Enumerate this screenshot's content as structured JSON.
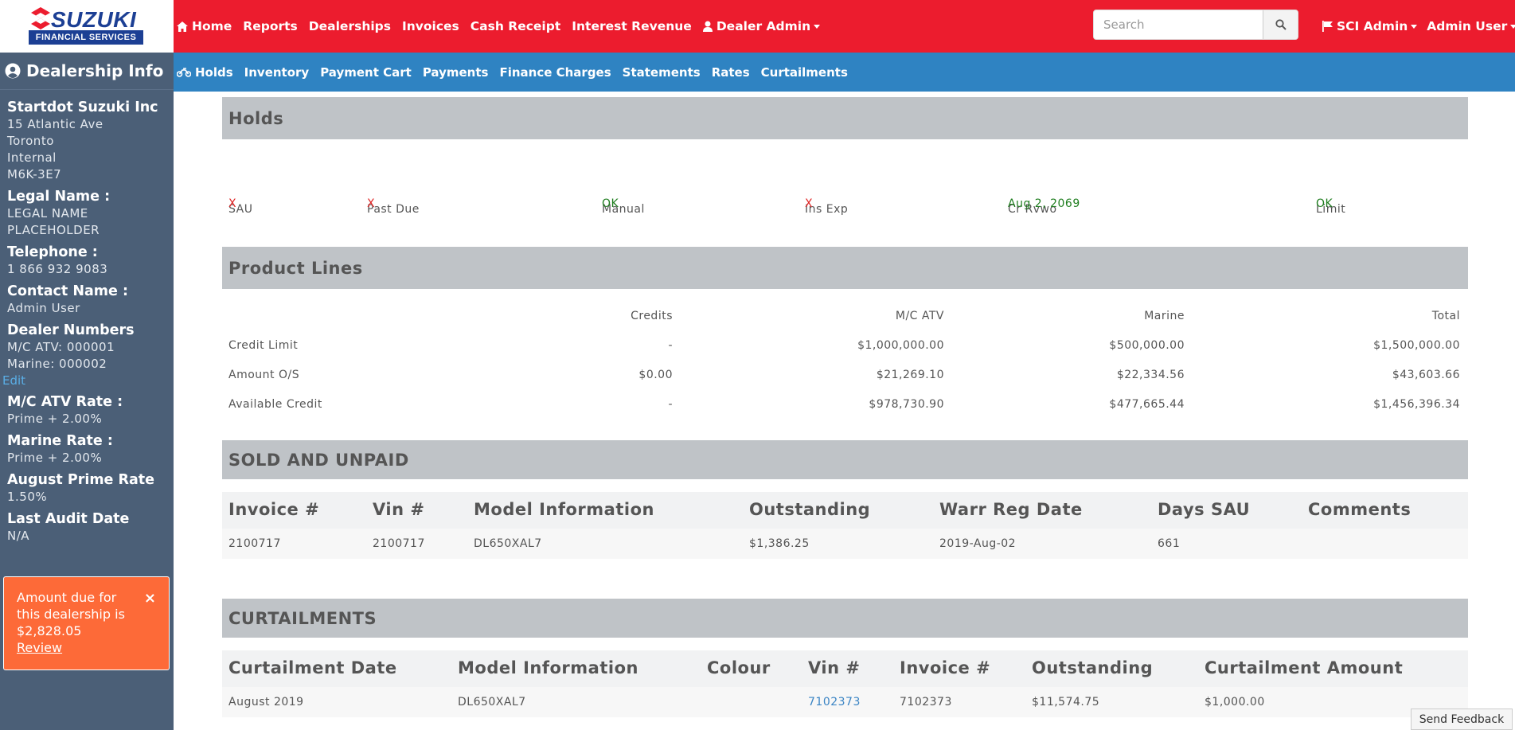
{
  "brand": {
    "name": "SUZUKI",
    "sub": "FINANCIAL SERVICES",
    "primary_color": "#ec1c2e",
    "navy": "#1c3f94"
  },
  "topnav": {
    "items": [
      {
        "label": "Home",
        "icon": "home-icon"
      },
      {
        "label": "Reports"
      },
      {
        "label": "Dealerships"
      },
      {
        "label": "Invoices"
      },
      {
        "label": "Cash Receipt"
      },
      {
        "label": "Interest Revenue"
      },
      {
        "label": "Dealer Admin",
        "icon": "user-icon",
        "dropdown": true
      }
    ],
    "search_placeholder": "Search",
    "right": [
      {
        "label": "SCI Admin",
        "icon": "flag-icon",
        "dropdown": true
      },
      {
        "label": "Admin User",
        "dropdown": true
      }
    ]
  },
  "subnav": {
    "color": "#2f83c2",
    "items": [
      {
        "label": "Holds",
        "icon": "motorcycle-icon"
      },
      {
        "label": "Inventory"
      },
      {
        "label": "Payment Cart"
      },
      {
        "label": "Payments"
      },
      {
        "label": "Finance Charges"
      },
      {
        "label": "Statements"
      },
      {
        "label": "Rates"
      },
      {
        "label": "Curtailments"
      }
    ]
  },
  "sidebar": {
    "title": "Dealership Info",
    "dealer_name": "Startdot Suzuki Inc",
    "address": [
      "15 Atlantic Ave",
      "Toronto",
      "Internal",
      "M6K-3E7"
    ],
    "legal_label": "Legal Name :",
    "legal_value": [
      "LEGAL NAME",
      "PLACEHOLDER"
    ],
    "phone_label": "Telephone :",
    "phone_value": "1 866 932 9083",
    "contact_label": "Contact Name :",
    "contact_value": "Admin User",
    "dealer_numbers_label": "Dealer Numbers",
    "dealer_numbers": [
      "M/C ATV: 000001",
      "Marine: 000002"
    ],
    "edit_label": "Edit",
    "mc_rate_label": "M/C ATV Rate :",
    "mc_rate_value": "Prime + 2.00%",
    "marine_rate_label": "Marine Rate :",
    "marine_rate_value": "Prime + 2.00%",
    "prime_label": "August Prime Rate",
    "prime_value": "1.50%",
    "audit_label": "Last Audit Date",
    "audit_value": "N/A",
    "alert": {
      "text_1": "Amount due for",
      "text_2": "this dealership is",
      "amount": "$2,828.05",
      "review": "Review",
      "close": "×"
    }
  },
  "holds": {
    "title": "Holds",
    "headers": [
      "SAU",
      "Past Due",
      "Manual",
      "Ins Exp",
      "Cr Rvwo",
      "Limit"
    ],
    "values": [
      "X",
      "X",
      "OK",
      "X",
      "Aug 2, 2069",
      "OK"
    ]
  },
  "product_lines": {
    "title": "Product Lines",
    "headers": [
      "Credits",
      "M/C ATV",
      "Marine",
      "Total"
    ],
    "rows": [
      {
        "label": "Credit Limit",
        "values": [
          "-",
          "$1,000,000.00",
          "$500,000.00",
          "$1,500,000.00"
        ]
      },
      {
        "label": "Amount O/S",
        "values": [
          "$0.00",
          "$21,269.10",
          "$22,334.56",
          "$43,603.66"
        ]
      },
      {
        "label": "Available Credit",
        "values": [
          "-",
          "$978,730.90",
          "$477,665.44",
          "$1,456,396.34"
        ]
      }
    ]
  },
  "sold_unpaid": {
    "title": "SOLD AND UNPAID",
    "headers": [
      "Invoice #",
      "Vin #",
      "Model Information",
      "Outstanding",
      "Warr Reg Date",
      "Days SAU",
      "Comments"
    ],
    "rows": [
      [
        "2100717",
        "2100717",
        "DL650XAL7",
        "$1,386.25",
        "2019-Aug-02",
        "661",
        ""
      ]
    ]
  },
  "curtailments": {
    "title": "CURTAILMENTS",
    "headers": [
      "Curtailment Date",
      "Model Information",
      "Colour",
      "Vin #",
      "Invoice #",
      "Outstanding",
      "Curtailment Amount"
    ],
    "rows": [
      [
        "August 2019",
        "DL650XAL7",
        "",
        "7102373",
        "7102373",
        "$11,574.75",
        "$1,000.00"
      ]
    ]
  },
  "feedback_label": "Send Feedback"
}
